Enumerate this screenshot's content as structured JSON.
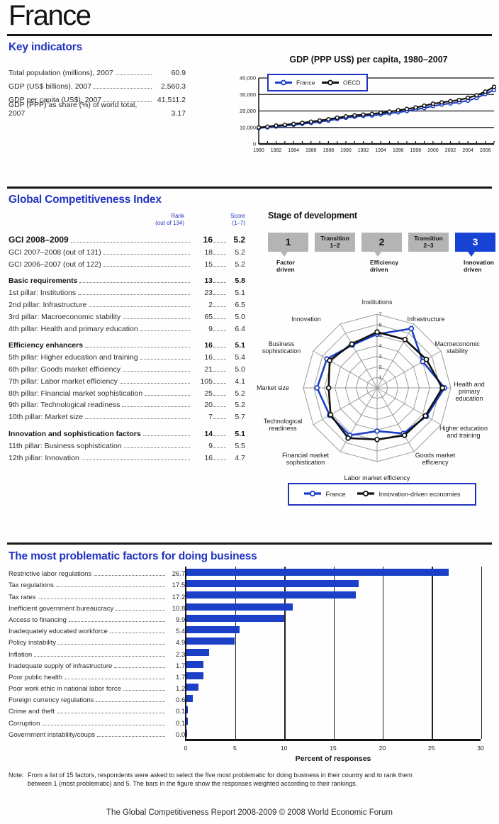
{
  "page": {
    "title": "France",
    "footer": "The Global Competitiveness Report 2008-2009 © 2008 World Economic Forum"
  },
  "colors": {
    "heading_blue": "#2133c0",
    "series_blue": "#1b3fc6",
    "series_black": "#111111",
    "stage_active_blue": "#1743d5",
    "stage_gray": "#b4b4b4",
    "grid_gray": "#9b9b9b"
  },
  "key_indicators": {
    "heading": "Key indicators",
    "items": [
      {
        "label": "Total population (millions), 2007",
        "value": "60.9"
      },
      {
        "label": "GDP (US$ billions), 2007",
        "value": "2,560.3"
      },
      {
        "label": "GDP per capita (US$), 2007",
        "value": "41,511.2"
      },
      {
        "label": "GDP (PPP) as share (%) of world total, 2007",
        "value": "3.17"
      }
    ]
  },
  "gci": {
    "heading": "Global Competitiveness Index",
    "rank_header_line1": "Rank",
    "rank_header_line2": "(out of 134)",
    "score_header_line1": "Score",
    "score_header_line2": "(1–7)",
    "rows": [
      {
        "label": "GCI 2008–2009",
        "rank": "16",
        "score": "5.2",
        "bold": true,
        "big": true
      },
      {
        "label": "GCI 2007–2008 (out of 131)",
        "rank": "18",
        "score": "5.2"
      },
      {
        "label": "GCI 2006–2007 (out of 122)",
        "rank": "15",
        "score": "5.2"
      },
      {
        "label": "Basic requirements",
        "rank": "13",
        "score": "5.8",
        "bold": true,
        "gap": true
      },
      {
        "label": "1st pillar: Institutions",
        "rank": "23",
        "score": "5.1"
      },
      {
        "label": "2nd pillar: Infrastructure",
        "rank": "2",
        "score": "6.5"
      },
      {
        "label": "3rd pillar: Macroeconomic stability",
        "rank": "65",
        "score": "5.0"
      },
      {
        "label": "4th pillar: Health and primary education",
        "rank": "9",
        "score": "6.4"
      },
      {
        "label": "Efficiency enhancers",
        "rank": "16",
        "score": "5.1",
        "bold": true,
        "gap": true
      },
      {
        "label": "5th pillar: Higher education and training",
        "rank": "16",
        "score": "5.4"
      },
      {
        "label": "6th pillar: Goods market efficiency",
        "rank": "21",
        "score": "5.0"
      },
      {
        "label": "7th pillar: Labor market efficiency",
        "rank": "105",
        "score": "4.1"
      },
      {
        "label": "8th pillar: Financial market sophistication",
        "rank": "25",
        "score": "5.2"
      },
      {
        "label": "9th pillar: Technological readiness",
        "rank": "20",
        "score": "5.2"
      },
      {
        "label": "10th pillar: Market size",
        "rank": "7",
        "score": "5.7"
      },
      {
        "label": "Innovation and sophistication factors",
        "rank": "14",
        "score": "5.1",
        "bold": true,
        "gap": true
      },
      {
        "label": "11th pillar: Business sophistication",
        "rank": "9",
        "score": "5.5"
      },
      {
        "label": "12th pillar: Innovation",
        "rank": "16",
        "score": "4.7"
      }
    ]
  },
  "stage": {
    "heading": "Stage of development",
    "boxes": [
      {
        "text": "1",
        "type": "number",
        "active": false,
        "label_lines": [
          "Factor",
          "driven"
        ]
      },
      {
        "text": "Transition\n1–2",
        "type": "transition",
        "active": false
      },
      {
        "text": "2",
        "type": "number",
        "active": false,
        "label_lines": [
          "Efficiency",
          "driven"
        ]
      },
      {
        "text": "Transition\n2–3",
        "type": "transition",
        "active": false
      },
      {
        "text": "3",
        "type": "number",
        "active": true,
        "label_lines": [
          "Innovation",
          "driven"
        ]
      }
    ]
  },
  "radar_legend": {
    "france": "France",
    "ide": "Innovation-driven economies"
  },
  "factors": {
    "heading": "The most problematic factors for doing business"
  },
  "note": {
    "label": "Note:",
    "text": "From a list of 15 factors, respondents were asked to select the five most problematic for doing business in their country and to rank them between 1 (most problematic) and 5. The bars in the figure show the responses weighted according to their rankings."
  },
  "chart_data": [
    {
      "id": "gdp_per_capita",
      "type": "line",
      "title": "GDP (PPP US$) per capita, 1980–2007",
      "x": [
        1980,
        1981,
        1982,
        1983,
        1984,
        1985,
        1986,
        1987,
        1988,
        1989,
        1990,
        1991,
        1992,
        1993,
        1994,
        1995,
        1996,
        1997,
        1998,
        1999,
        2000,
        2001,
        2002,
        2003,
        2004,
        2005,
        2006,
        2007
      ],
      "series": [
        {
          "name": "France",
          "color": "#1b3fc6",
          "values": [
            9600,
            10100,
            10600,
            11100,
            11600,
            12200,
            12800,
            13400,
            14200,
            15100,
            15900,
            16500,
            17000,
            17300,
            17900,
            18600,
            19200,
            20000,
            20900,
            21800,
            23000,
            23900,
            24600,
            25300,
            26300,
            27900,
            30300,
            32700
          ]
        },
        {
          "name": "OECD",
          "color": "#111111",
          "values": [
            10000,
            10500,
            11100,
            11600,
            12200,
            12800,
            13500,
            14200,
            15000,
            15900,
            16700,
            17300,
            17800,
            18200,
            18900,
            19600,
            20400,
            21200,
            22100,
            23200,
            24400,
            25200,
            25900,
            26700,
            28000,
            29500,
            31700,
            34600
          ]
        }
      ],
      "ylim": [
        0,
        40000
      ],
      "yticks": [
        0,
        10000,
        20000,
        30000,
        40000
      ],
      "ytick_labels": [
        "0",
        "10,000",
        "20,000",
        "30,000",
        "40,000"
      ],
      "xtick_labels": [
        "1980",
        "1982",
        "1984",
        "1986",
        "1988",
        "1990",
        "1992",
        "1994",
        "1996",
        "1998",
        "2000",
        "2002",
        "2004",
        "2006"
      ],
      "grid": "horizontal",
      "legend_position": "top-center"
    },
    {
      "id": "gci_radar",
      "type": "radar",
      "rings": [
        1,
        2,
        3,
        4,
        5,
        6,
        7
      ],
      "axes": [
        "Institutions",
        "Infrastructure",
        "Macroeconomic stability",
        "Health and primary education",
        "Higher education and training",
        "Goods market efficiency",
        "Labor market efficiency",
        "Financial market sophistication",
        "Technological readiness",
        "Market size",
        "Business sophistication",
        "Innovation"
      ],
      "axis_label_lines": [
        [
          "Institutions"
        ],
        [
          "Infrastructure"
        ],
        [
          "Macroeconomic",
          "stability"
        ],
        [
          "Health and",
          "primary",
          "education"
        ],
        [
          "Higher education",
          "and training"
        ],
        [
          "Goods market",
          "efficiency"
        ],
        [
          "Labor market efficiency"
        ],
        [
          "Financial market",
          "sophistication"
        ],
        [
          "Technological",
          "readiness"
        ],
        [
          "Market size"
        ],
        [
          "Business",
          "sophistication"
        ],
        [
          "Innovation"
        ]
      ],
      "series": [
        {
          "name": "France",
          "color": "#1b3fc6",
          "values": [
            5.1,
            6.5,
            5.0,
            6.4,
            5.4,
            5.0,
            4.1,
            5.2,
            5.2,
            5.7,
            5.5,
            4.7
          ]
        },
        {
          "name": "Innovation-driven economies",
          "color": "#111111",
          "values": [
            5.3,
            5.3,
            5.4,
            6.2,
            5.3,
            5.2,
            4.9,
            5.5,
            5.1,
            4.6,
            5.2,
            4.8
          ]
        }
      ],
      "legend_position": "bottom"
    },
    {
      "id": "problematic_factors",
      "type": "bar",
      "orientation": "horizontal",
      "categories": [
        "Restrictive labor regulations",
        "Tax regulations",
        "Tax rates",
        "Inefficient government bureaucracy",
        "Access to financing",
        "Inadequately educated workforce",
        "Policy instability",
        "Inflation",
        "Inadequate supply of infrastructure",
        "Poor public health",
        "Poor work ethic in national labor force",
        "Foreign currency regulations",
        "Crime and theft",
        "Corruption",
        "Government instability/coups"
      ],
      "values": [
        26.7,
        17.5,
        17.2,
        10.8,
        9.9,
        5.4,
        4.9,
        2.3,
        1.7,
        1.7,
        1.2,
        0.6,
        0.1,
        0.1,
        0.0
      ],
      "xlabel": "Percent of responses",
      "xlim": [
        0,
        30
      ],
      "xticks": [
        0,
        5,
        10,
        15,
        20,
        25,
        30
      ],
      "bar_color": "#1b3fc6"
    }
  ]
}
